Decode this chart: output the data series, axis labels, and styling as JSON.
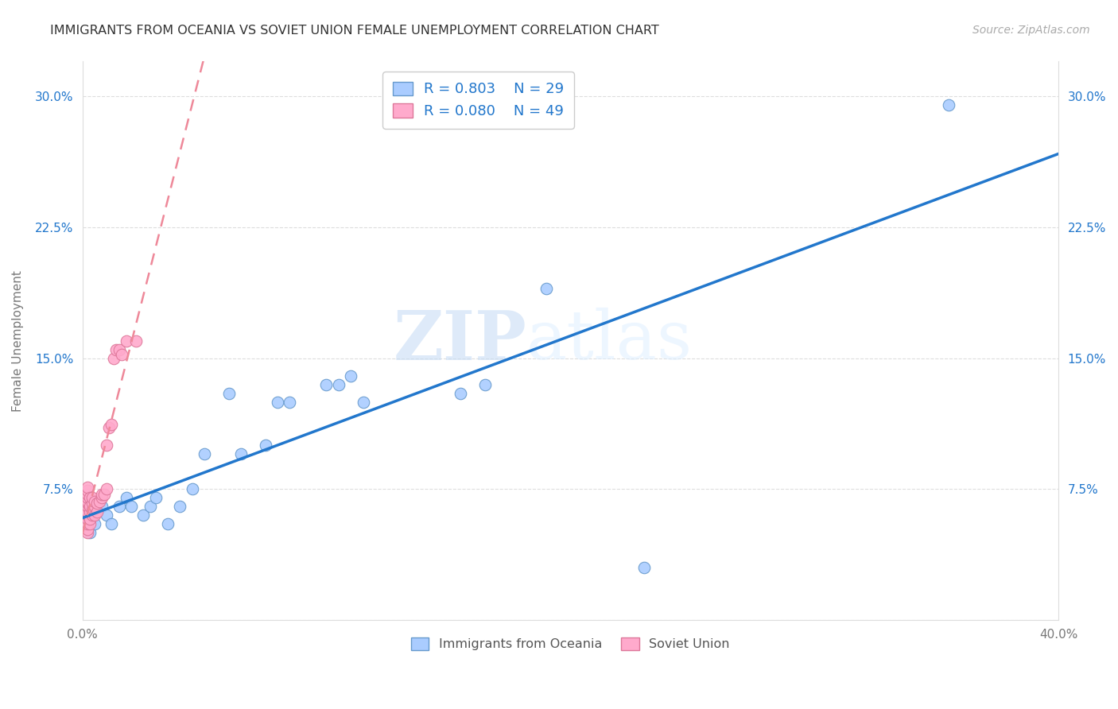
{
  "title": "IMMIGRANTS FROM OCEANIA VS SOVIET UNION FEMALE UNEMPLOYMENT CORRELATION CHART",
  "source": "Source: ZipAtlas.com",
  "ylabel": "Female Unemployment",
  "xlim": [
    0.0,
    0.4
  ],
  "ylim": [
    0.0,
    0.32
  ],
  "xticks": [
    0.0,
    0.1,
    0.2,
    0.3,
    0.4
  ],
  "yticks": [
    0.0,
    0.075,
    0.15,
    0.225,
    0.3
  ],
  "xtick_labels": [
    "0.0%",
    "",
    "",
    "",
    "40.0%"
  ],
  "ytick_labels": [
    "",
    "7.5%",
    "15.0%",
    "22.5%",
    "30.0%"
  ],
  "grid_color": "#dddddd",
  "background_color": "#ffffff",
  "oceania_color": "#aaccff",
  "soviet_color": "#ffaacc",
  "oceania_edge": "#6699cc",
  "soviet_edge": "#dd7799",
  "line_blue": "#2277cc",
  "line_pink": "#ee8899",
  "R_oceania": 0.803,
  "N_oceania": 29,
  "R_soviet": 0.08,
  "N_soviet": 49,
  "legend_label_oceania": "Immigrants from Oceania",
  "legend_label_soviet": "Soviet Union",
  "oceania_x": [
    0.003,
    0.005,
    0.008,
    0.01,
    0.012,
    0.015,
    0.018,
    0.02,
    0.025,
    0.028,
    0.03,
    0.035,
    0.04,
    0.045,
    0.05,
    0.06,
    0.065,
    0.075,
    0.08,
    0.085,
    0.1,
    0.105,
    0.11,
    0.115,
    0.155,
    0.165,
    0.19,
    0.23,
    0.355
  ],
  "oceania_y": [
    0.05,
    0.055,
    0.065,
    0.06,
    0.055,
    0.065,
    0.07,
    0.065,
    0.06,
    0.065,
    0.07,
    0.055,
    0.065,
    0.075,
    0.095,
    0.13,
    0.095,
    0.1,
    0.125,
    0.125,
    0.135,
    0.135,
    0.14,
    0.125,
    0.13,
    0.135,
    0.19,
    0.03,
    0.295
  ],
  "soviet_x": [
    0.001,
    0.001,
    0.001,
    0.001,
    0.001,
    0.001,
    0.001,
    0.001,
    0.002,
    0.002,
    0.002,
    0.002,
    0.002,
    0.002,
    0.002,
    0.002,
    0.002,
    0.002,
    0.002,
    0.002,
    0.002,
    0.003,
    0.003,
    0.003,
    0.003,
    0.003,
    0.004,
    0.004,
    0.004,
    0.004,
    0.005,
    0.005,
    0.005,
    0.006,
    0.006,
    0.007,
    0.008,
    0.008,
    0.009,
    0.01,
    0.01,
    0.011,
    0.012,
    0.013,
    0.014,
    0.015,
    0.016,
    0.018,
    0.022
  ],
  "soviet_y": [
    0.055,
    0.06,
    0.062,
    0.065,
    0.067,
    0.068,
    0.07,
    0.072,
    0.05,
    0.052,
    0.055,
    0.058,
    0.06,
    0.062,
    0.065,
    0.067,
    0.068,
    0.07,
    0.072,
    0.074,
    0.076,
    0.055,
    0.058,
    0.062,
    0.065,
    0.07,
    0.06,
    0.063,
    0.067,
    0.07,
    0.06,
    0.065,
    0.068,
    0.062,
    0.067,
    0.068,
    0.07,
    0.072,
    0.072,
    0.075,
    0.1,
    0.11,
    0.112,
    0.15,
    0.155,
    0.155,
    0.152,
    0.16,
    0.16
  ],
  "watermark_zip": "ZIP",
  "watermark_atlas": "atlas",
  "marker_size": 110
}
